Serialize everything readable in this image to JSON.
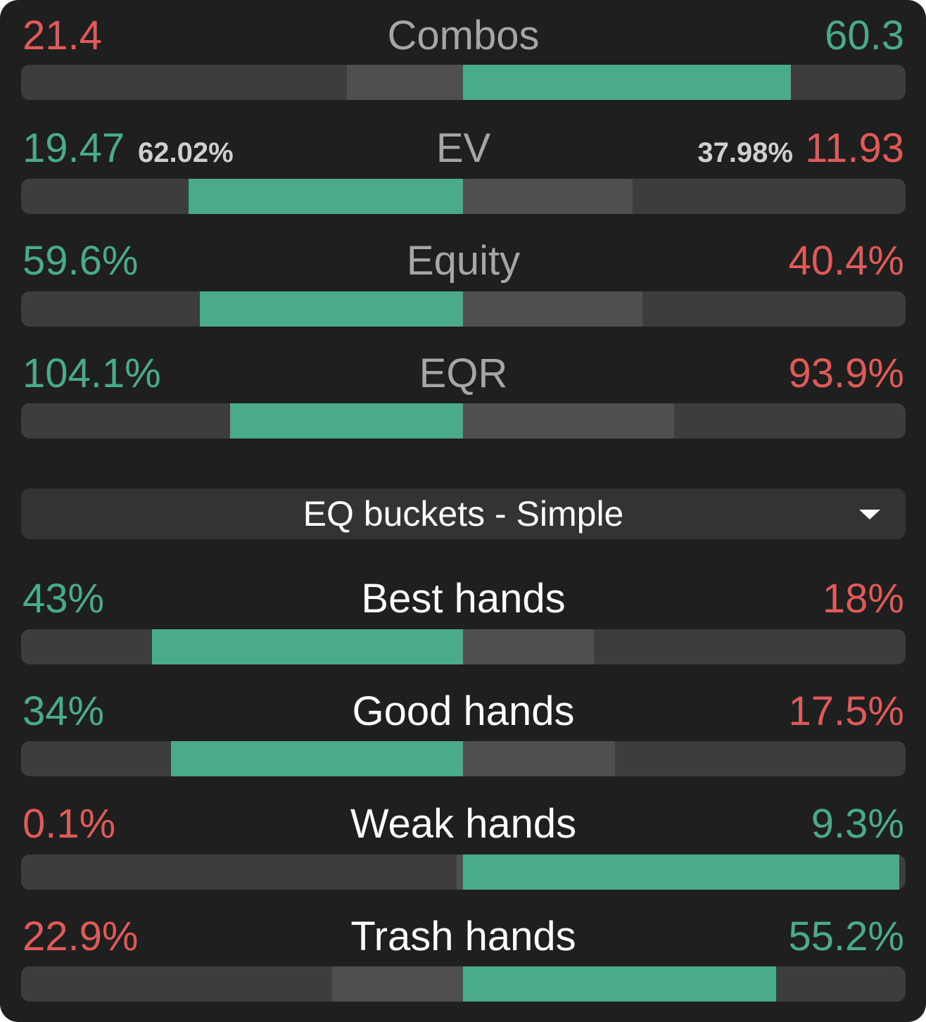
{
  "stats": [
    {
      "title": "Combos",
      "left_value": "21.4",
      "right_value": "60.3",
      "left_color": "red",
      "right_color": "green"
    },
    {
      "title": "EV",
      "left_value": "19.47",
      "left_pct": "62.02%",
      "right_value": "11.93",
      "right_pct": "37.98%",
      "left_color": "green",
      "right_color": "red"
    },
    {
      "title": "Equity",
      "left_value": "59.6%",
      "right_value": "40.4%",
      "left_color": "green",
      "right_color": "red"
    },
    {
      "title": "EQR",
      "left_value": "104.1%",
      "right_value": "93.9%",
      "left_color": "green",
      "right_color": "red"
    }
  ],
  "dropdown": {
    "label": "EQ buckets - Simple",
    "icon": "caret-down-icon"
  },
  "buckets": [
    {
      "title": "Best hands",
      "left_value": "43%",
      "right_value": "18%",
      "left_color": "green",
      "right_color": "red"
    },
    {
      "title": "Good hands",
      "left_value": "34%",
      "right_value": "17.5%",
      "left_color": "green",
      "right_color": "red"
    },
    {
      "title": "Weak hands",
      "left_value": "0.1%",
      "right_value": "9.3%",
      "left_color": "red",
      "right_color": "green"
    },
    {
      "title": "Trash hands",
      "left_value": "22.9%",
      "right_value": "55.2%",
      "left_color": "red",
      "right_color": "green"
    }
  ],
  "colors": {
    "green": "#4aaa8c",
    "red": "#e05a57",
    "background": "#1f1f1f",
    "bar_track": "#3d3d3d",
    "bar_mid": "#4f4f4f"
  }
}
